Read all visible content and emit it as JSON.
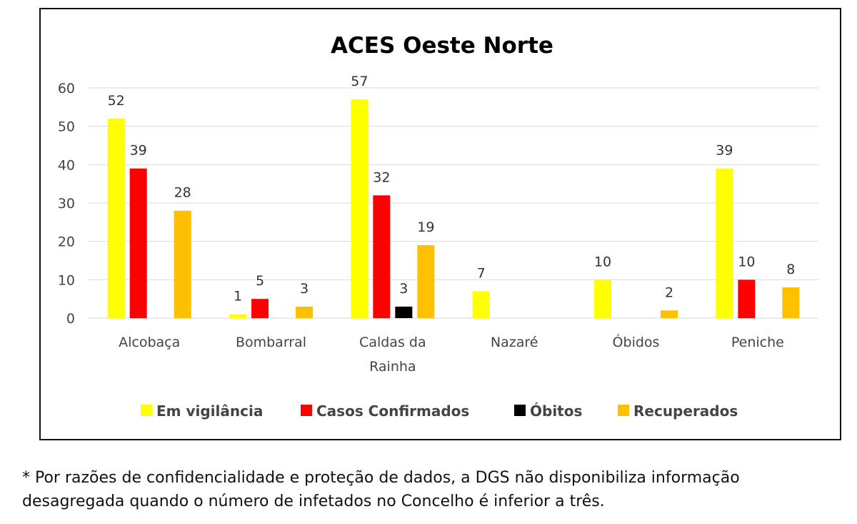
{
  "chart_data": {
    "type": "bar",
    "title": "ACES Oeste Norte",
    "xlabel": "",
    "ylabel": "",
    "categories": [
      "Alcobaça",
      "Bombarral",
      "Caldas da Rainha",
      "Nazaré",
      "Óbidos",
      "Peniche"
    ],
    "category_lines": [
      [
        "Alcobaça"
      ],
      [
        "Bombarral"
      ],
      [
        "Caldas da",
        "Rainha"
      ],
      [
        "Nazaré"
      ],
      [
        "Óbidos"
      ],
      [
        "Peniche"
      ]
    ],
    "series": [
      {
        "name": "Em vigilância",
        "color": "#FFFF00",
        "values": [
          52,
          1,
          57,
          7,
          10,
          39
        ]
      },
      {
        "name": "Casos Confirmados",
        "color": "#FF0000",
        "values": [
          39,
          5,
          32,
          null,
          null,
          10
        ]
      },
      {
        "name": "Óbitos",
        "color": "#000000",
        "values": [
          null,
          null,
          3,
          null,
          null,
          null
        ]
      },
      {
        "name": "Recuperados",
        "color": "#FFC000",
        "values": [
          28,
          3,
          19,
          null,
          2,
          8
        ]
      }
    ],
    "ylim": [
      0,
      60
    ],
    "yticks": [
      0,
      10,
      20,
      30,
      40,
      50,
      60
    ],
    "grid": true,
    "legend_position": "bottom"
  },
  "footnote": {
    "line1": "* Por razões de confidencialidade e proteção de dados, a DGS não disponibiliza informação",
    "line2": "desagregada quando o número de infetados no Concelho é inferior a três."
  }
}
